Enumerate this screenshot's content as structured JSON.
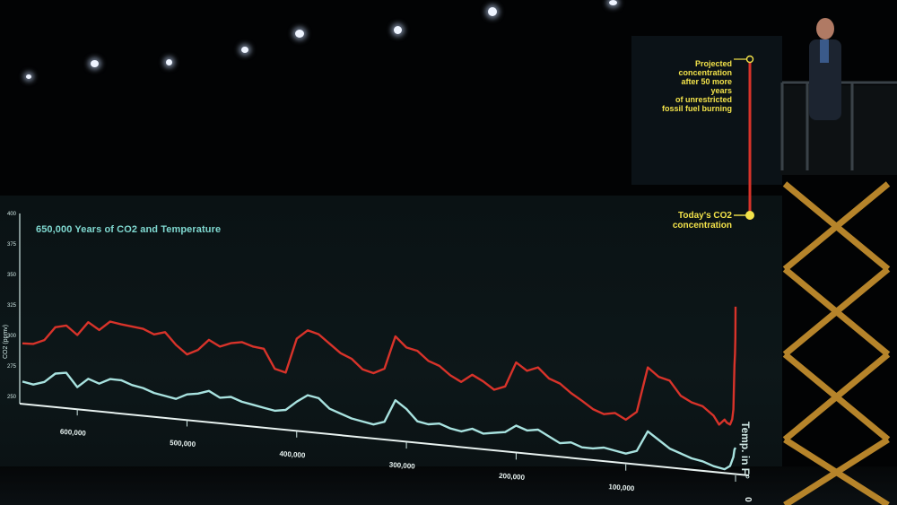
{
  "chart_data": {
    "type": "line",
    "title": "650,000 Years of CO2 and Temperature",
    "annotations": {
      "projected": "Projected\nconcentration\nafter 50 more years\nof unrestricted\nfossil fuel burning",
      "today": "Today's CO2\nconcentration"
    },
    "x_ticks": [
      "600,000",
      "500,000",
      "400,000",
      "300,000",
      "200,000",
      "100,000",
      "0"
    ],
    "y_ticks": [
      "400",
      "375",
      "350",
      "325",
      "300",
      "275",
      "250"
    ],
    "ylabel_left": "CO2 (ppmv)",
    "ylabel_right": "Temp. in F°",
    "series": [
      {
        "name": "CO2",
        "color": "#d8332a",
        "points": [
          [
            650,
            190
          ],
          [
            640,
            191
          ],
          [
            630,
            200
          ],
          [
            620,
            225
          ],
          [
            610,
            230
          ],
          [
            600,
            215
          ],
          [
            590,
            240
          ],
          [
            580,
            228
          ],
          [
            570,
            245
          ],
          [
            560,
            242
          ],
          [
            550,
            240
          ],
          [
            540,
            238
          ],
          [
            530,
            230
          ],
          [
            520,
            236
          ],
          [
            510,
            215
          ],
          [
            500,
            200
          ],
          [
            490,
            210
          ],
          [
            480,
            230
          ],
          [
            470,
            220
          ],
          [
            460,
            228
          ],
          [
            450,
            232
          ],
          [
            440,
            226
          ],
          [
            430,
            224
          ],
          [
            420,
            190
          ],
          [
            410,
            185
          ],
          [
            400,
            248
          ],
          [
            390,
            265
          ],
          [
            380,
            260
          ],
          [
            370,
            245
          ],
          [
            360,
            230
          ],
          [
            350,
            222
          ],
          [
            340,
            205
          ],
          [
            330,
            200
          ],
          [
            320,
            210
          ],
          [
            310,
            270
          ],
          [
            300,
            252
          ],
          [
            290,
            248
          ],
          [
            280,
            232
          ],
          [
            270,
            225
          ],
          [
            260,
            210
          ],
          [
            250,
            200
          ],
          [
            240,
            215
          ],
          [
            230,
            205
          ],
          [
            220,
            192
          ],
          [
            210,
            200
          ],
          [
            200,
            245
          ],
          [
            190,
            232
          ],
          [
            180,
            240
          ],
          [
            170,
            222
          ],
          [
            160,
            215
          ],
          [
            150,
            200
          ],
          [
            140,
            188
          ],
          [
            130,
            175
          ],
          [
            120,
            168
          ],
          [
            110,
            172
          ],
          [
            100,
            162
          ],
          [
            90,
            178
          ],
          [
            80,
            260
          ],
          [
            70,
            245
          ],
          [
            60,
            240
          ],
          [
            50,
            215
          ],
          [
            40,
            205
          ],
          [
            30,
            200
          ],
          [
            20,
            185
          ],
          [
            15,
            170
          ],
          [
            10,
            180
          ],
          [
            8,
            175
          ],
          [
            5,
            172
          ],
          [
            3,
            182
          ],
          [
            2,
            200
          ],
          [
            1.5,
            240
          ],
          [
            1,
            280
          ],
          [
            0.5,
            300
          ],
          [
            0.2,
            330
          ],
          [
            0,
            385
          ]
        ]
      },
      {
        "name": "Temperature",
        "color": "#a8e2df",
        "points": [
          [
            650,
            -4
          ],
          [
            640,
            -5
          ],
          [
            630,
            -3
          ],
          [
            620,
            2
          ],
          [
            610,
            3
          ],
          [
            600,
            -4
          ],
          [
            590,
            1
          ],
          [
            580,
            -1
          ],
          [
            570,
            2
          ],
          [
            560,
            2
          ],
          [
            550,
            0
          ],
          [
            540,
            -1
          ],
          [
            530,
            -3
          ],
          [
            520,
            -4
          ],
          [
            510,
            -5
          ],
          [
            500,
            -2
          ],
          [
            490,
            -1
          ],
          [
            480,
            1
          ],
          [
            470,
            -2
          ],
          [
            460,
            -1
          ],
          [
            450,
            -3
          ],
          [
            440,
            -4
          ],
          [
            430,
            -5
          ],
          [
            420,
            -6
          ],
          [
            410,
            -5
          ],
          [
            400,
            0
          ],
          [
            390,
            4
          ],
          [
            380,
            3
          ],
          [
            370,
            -2
          ],
          [
            360,
            -4
          ],
          [
            350,
            -6
          ],
          [
            340,
            -7
          ],
          [
            330,
            -8
          ],
          [
            320,
            -6
          ],
          [
            310,
            6
          ],
          [
            300,
            2
          ],
          [
            290,
            -4
          ],
          [
            280,
            -5
          ],
          [
            270,
            -4
          ],
          [
            260,
            -6
          ],
          [
            250,
            -7
          ],
          [
            240,
            -5
          ],
          [
            230,
            -7
          ],
          [
            220,
            -6
          ],
          [
            210,
            -5
          ],
          [
            200,
            -1
          ],
          [
            190,
            -3
          ],
          [
            180,
            -2
          ],
          [
            170,
            -5
          ],
          [
            160,
            -8
          ],
          [
            150,
            -7
          ],
          [
            140,
            -9
          ],
          [
            130,
            -9
          ],
          [
            120,
            -8
          ],
          [
            110,
            -9
          ],
          [
            100,
            -10
          ],
          [
            90,
            -8
          ],
          [
            80,
            3
          ],
          [
            70,
            -1
          ],
          [
            60,
            -5
          ],
          [
            50,
            -7
          ],
          [
            40,
            -9
          ],
          [
            30,
            -10
          ],
          [
            20,
            -12
          ],
          [
            10,
            -13
          ],
          [
            5,
            -11
          ],
          [
            2,
            -6
          ],
          [
            1,
            -2
          ],
          [
            0,
            -1
          ]
        ]
      }
    ],
    "projection": {
      "color": "#d8332a",
      "today_marker_color": "#f2e24a"
    }
  }
}
